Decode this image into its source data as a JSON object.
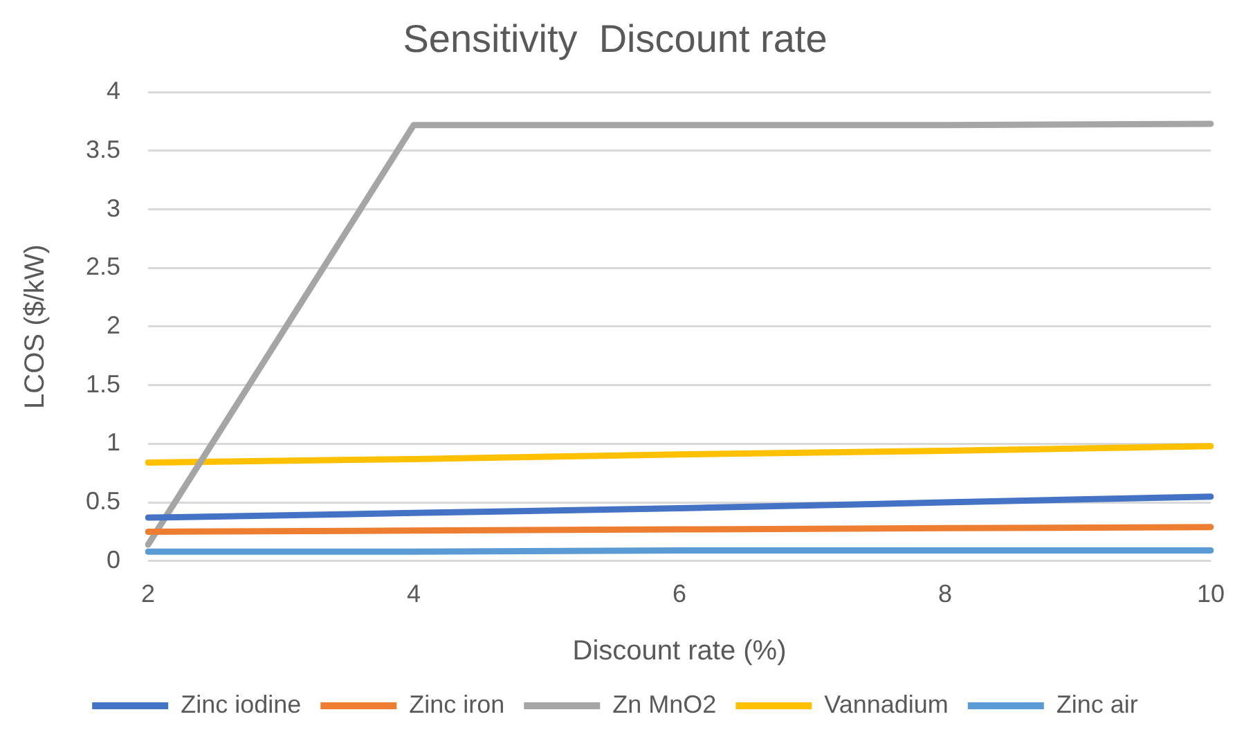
{
  "chart_data": {
    "type": "line",
    "title": "Sensitivity  Discount rate",
    "xlabel": "Discount rate (%)",
    "ylabel": "LCOS ($/kW)",
    "categories": [
      "2",
      "4",
      "6",
      "8",
      "10"
    ],
    "series": [
      {
        "name": "Zinc iodine",
        "color": "#4472c4",
        "values": [
          0.37,
          0.41,
          0.45,
          0.5,
          0.55
        ]
      },
      {
        "name": "Zinc iron",
        "color": "#ed7d31",
        "values": [
          0.25,
          0.26,
          0.27,
          0.28,
          0.29
        ]
      },
      {
        "name": "Zn MnO2",
        "color": "#a5a5a5",
        "values": [
          0.14,
          3.72,
          3.72,
          3.72,
          3.73
        ]
      },
      {
        "name": "Vannadium",
        "color": "#ffc000",
        "values": [
          0.84,
          0.87,
          0.91,
          0.94,
          0.98
        ]
      },
      {
        "name": "Zinc air",
        "color": "#5b9bd5",
        "values": [
          0.08,
          0.08,
          0.09,
          0.09,
          0.09
        ]
      }
    ],
    "ylim": [
      0,
      4
    ],
    "yticks": [
      0,
      0.5,
      1,
      1.5,
      2,
      2.5,
      3,
      3.5,
      4
    ],
    "grid": "y",
    "legend": "bottom",
    "marker": "none",
    "line_style": "solid"
  }
}
